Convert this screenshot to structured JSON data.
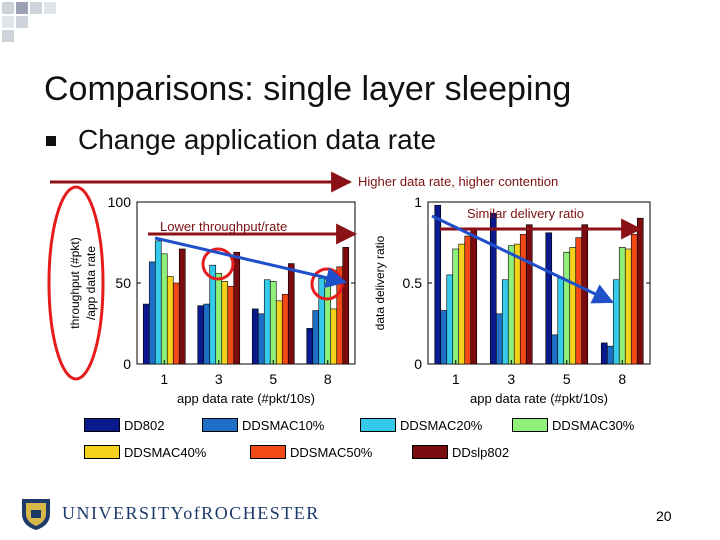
{
  "slide": {
    "title": "Comparisons: single layer sleeping",
    "bullet": "Change application data rate",
    "page_number": "20",
    "footer_text": "UNIVERSITYofROCHESTER"
  },
  "annotations": {
    "contention": "Higher data rate, higher contention",
    "similar_ratio": "Similar delivery ratio",
    "lower_tput": "Lower throughput/rate"
  },
  "colors": {
    "DD802": "#0a1a8c",
    "DDSMAC10%": "#1f6fc7",
    "DDSMAC20%": "#35c9ea",
    "DDSMAC30%": "#8ff07a",
    "DDSMAC40%": "#f5d21b",
    "DDSMAC50%": "#f24a16",
    "DDslp802": "#7a0c10",
    "arrow_red": "#8a1216",
    "arrow_blue": "#1f4fc9",
    "highlight_red": "#e61c1c"
  },
  "chart_data": [
    {
      "type": "bar",
      "title": "",
      "xlabel": "app data rate (#pkt/10s)",
      "ylabel": "throughput (#pkt) /app data rate",
      "categories": [
        "1",
        "3",
        "5",
        "8"
      ],
      "ylim": [
        0,
        100
      ],
      "yticks": [
        "0",
        "50",
        "100"
      ],
      "series": [
        {
          "name": "DD802",
          "values": [
            37,
            36,
            34,
            22
          ]
        },
        {
          "name": "DDSMAC10%",
          "values": [
            63,
            37,
            31,
            33
          ]
        },
        {
          "name": "DDSMAC20%",
          "values": [
            76,
            61,
            52,
            53
          ]
        },
        {
          "name": "DDSMAC30%",
          "values": [
            68,
            56,
            51,
            52
          ]
        },
        {
          "name": "DDSMAC40%",
          "values": [
            54,
            51,
            39,
            34
          ]
        },
        {
          "name": "DDSMAC50%",
          "values": [
            50,
            48,
            43,
            60
          ]
        },
        {
          "name": "DDslp802",
          "values": [
            71,
            69,
            62,
            72
          ]
        }
      ]
    },
    {
      "type": "bar",
      "title": "",
      "xlabel": "app data rate (#pkt/10s)",
      "ylabel": "data delivery ratio",
      "categories": [
        "1",
        "3",
        "5",
        "8"
      ],
      "ylim": [
        0,
        1
      ],
      "yticks": [
        "0",
        "0.5",
        "1"
      ],
      "series": [
        {
          "name": "DD802",
          "values": [
            0.98,
            0.93,
            0.81,
            0.13
          ]
        },
        {
          "name": "DDSMAC10%",
          "values": [
            0.33,
            0.31,
            0.18,
            0.11
          ]
        },
        {
          "name": "DDSMAC20%",
          "values": [
            0.55,
            0.52,
            0.53,
            0.52
          ]
        },
        {
          "name": "DDSMAC30%",
          "values": [
            0.71,
            0.73,
            0.69,
            0.72
          ]
        },
        {
          "name": "DDSMAC40%",
          "values": [
            0.74,
            0.74,
            0.72,
            0.71
          ]
        },
        {
          "name": "DDSMAC50%",
          "values": [
            0.79,
            0.8,
            0.78,
            0.8
          ]
        },
        {
          "name": "DDslp802",
          "values": [
            0.84,
            0.86,
            0.86,
            0.9
          ]
        }
      ]
    }
  ],
  "legend": [
    "DD802",
    "DDSMAC10%",
    "DDSMAC20%",
    "DDSMAC30%",
    "DDSMAC40%",
    "DDSMAC50%",
    "DDslp802"
  ]
}
